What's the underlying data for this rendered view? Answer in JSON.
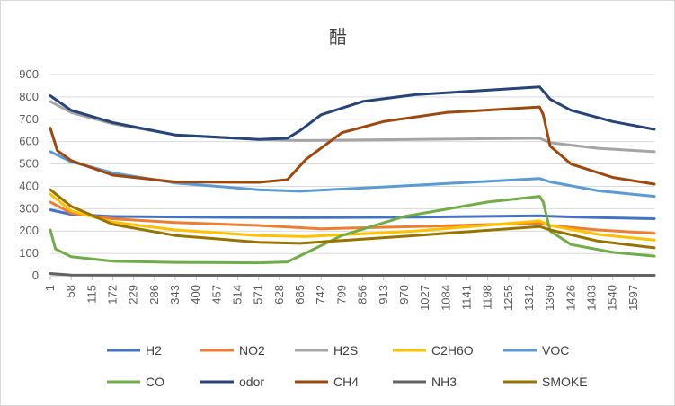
{
  "chart_data": {
    "type": "line",
    "title": "醋",
    "xlabel": "",
    "ylabel": "",
    "ylim": [
      0,
      900
    ],
    "yticks": [
      0,
      100,
      200,
      300,
      400,
      500,
      600,
      700,
      800,
      900
    ],
    "xlim": [
      1,
      1654
    ],
    "xticks": [
      1,
      58,
      115,
      172,
      229,
      286,
      343,
      400,
      457,
      514,
      571,
      628,
      685,
      742,
      799,
      856,
      913,
      970,
      1027,
      1084,
      1141,
      1198,
      1255,
      1312,
      1369,
      1426,
      1483,
      1540,
      1597
    ],
    "grid": "horizontal",
    "legend_position": "bottom",
    "series": [
      {
        "name": "H2",
        "color": "#4472C4",
        "x": [
          1,
          58,
          172,
          400,
          685,
          1000,
          1340,
          1369,
          1500,
          1654
        ],
        "y": [
          295,
          275,
          265,
          262,
          260,
          262,
          268,
          266,
          260,
          255
        ]
      },
      {
        "name": "NO2",
        "color": "#ED7D31",
        "x": [
          1,
          58,
          172,
          343,
          571,
          742,
          1000,
          1340,
          1369,
          1500,
          1654
        ],
        "y": [
          330,
          280,
          255,
          238,
          225,
          210,
          220,
          235,
          225,
          205,
          190
        ]
      },
      {
        "name": "H2S",
        "color": "#A5A5A5",
        "x": [
          1,
          58,
          172,
          343,
          571,
          685,
          1000,
          1340,
          1369,
          1500,
          1654
        ],
        "y": [
          780,
          730,
          680,
          630,
          610,
          605,
          610,
          615,
          595,
          570,
          555
        ]
      },
      {
        "name": "C2H6O",
        "color": "#FFC000",
        "x": [
          1,
          58,
          172,
          343,
          571,
          700,
          1000,
          1340,
          1369,
          1500,
          1654
        ],
        "y": [
          365,
          290,
          240,
          205,
          180,
          175,
          200,
          245,
          225,
          185,
          160
        ]
      },
      {
        "name": "VOC",
        "color": "#5B9BD5",
        "x": [
          1,
          58,
          172,
          343,
          571,
          685,
          1000,
          1340,
          1369,
          1500,
          1654
        ],
        "y": [
          555,
          510,
          460,
          415,
          385,
          378,
          405,
          435,
          420,
          380,
          355
        ]
      },
      {
        "name": "CO",
        "color": "#70AD47",
        "x": [
          1,
          15,
          58,
          172,
          343,
          571,
          650,
          685,
          799,
          970,
          1198,
          1340,
          1350,
          1369,
          1426,
          1540,
          1654
        ],
        "y": [
          205,
          120,
          85,
          65,
          60,
          58,
          62,
          90,
          180,
          265,
          330,
          355,
          330,
          200,
          140,
          105,
          88
        ]
      },
      {
        "name": "odor",
        "color": "#264478",
        "x": [
          1,
          58,
          172,
          343,
          571,
          650,
          685,
          742,
          856,
          1000,
          1198,
          1340,
          1369,
          1426,
          1540,
          1654
        ],
        "y": [
          805,
          740,
          685,
          630,
          610,
          615,
          650,
          720,
          780,
          810,
          830,
          845,
          790,
          740,
          690,
          655
        ]
      },
      {
        "name": "CH4",
        "color": "#9E480E",
        "x": [
          1,
          20,
          58,
          172,
          343,
          571,
          650,
          700,
          799,
          913,
          1084,
          1340,
          1350,
          1369,
          1426,
          1540,
          1654
        ],
        "y": [
          660,
          560,
          515,
          450,
          420,
          418,
          430,
          520,
          640,
          690,
          730,
          755,
          720,
          580,
          500,
          440,
          410
        ]
      },
      {
        "name": "NH3",
        "color": "#636363",
        "x": [
          1,
          58,
          400,
          1000,
          1654
        ],
        "y": [
          10,
          3,
          2,
          2,
          2
        ]
      },
      {
        "name": "SMOKE",
        "color": "#997300",
        "x": [
          1,
          58,
          172,
          343,
          571,
          685,
          1000,
          1340,
          1369,
          1500,
          1654
        ],
        "y": [
          385,
          310,
          230,
          180,
          150,
          145,
          180,
          220,
          205,
          155,
          125
        ]
      }
    ]
  }
}
